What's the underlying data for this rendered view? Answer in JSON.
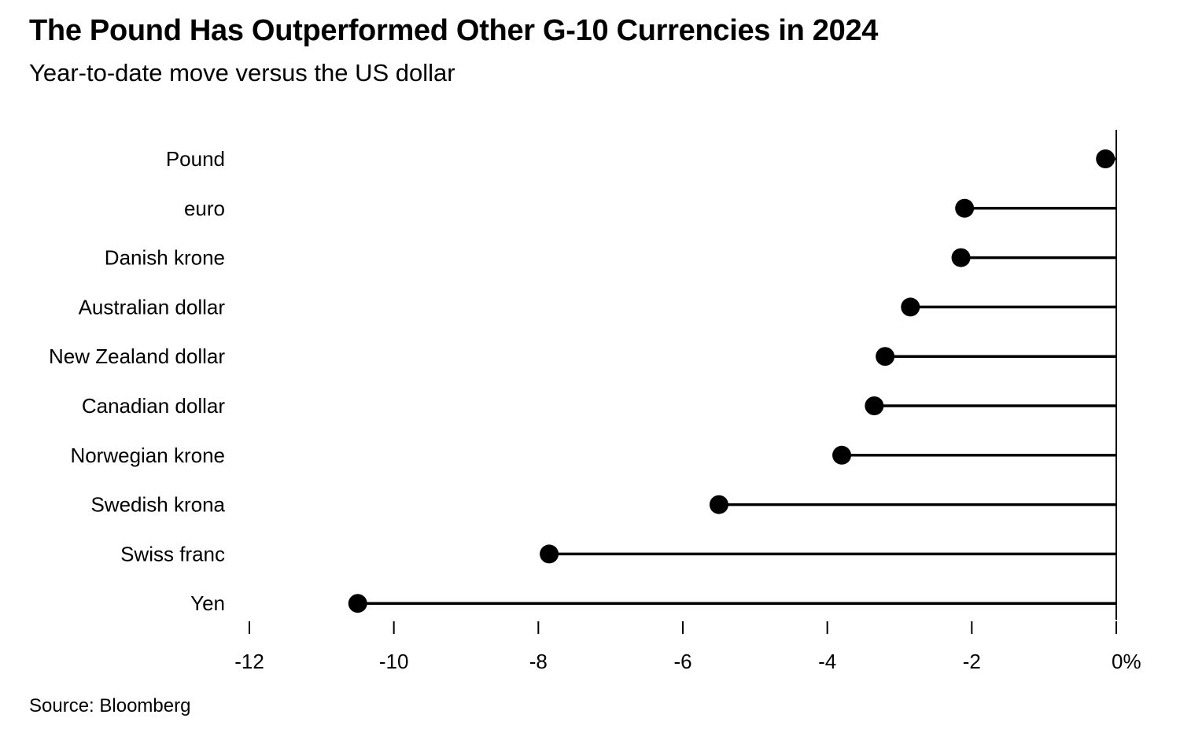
{
  "header": {
    "title": "The Pound Has Outperformed Other G-10 Currencies in 2024",
    "subtitle": "Year-to-date move versus the US dollar"
  },
  "footer": {
    "source": "Source: Bloomberg"
  },
  "chart_data": {
    "type": "lollipop",
    "title": "The Pound Has Outperformed Other G-10 Currencies in 2024",
    "subtitle": "Year-to-date move versus the US dollar",
    "categories": [
      "Pound",
      "euro",
      "Danish krone",
      "Australian dollar",
      "New Zealand dollar",
      "Canadian dollar",
      "Norwegian krone",
      "Swedish krona",
      "Swiss franc",
      "Yen"
    ],
    "values": [
      -0.15,
      -2.1,
      -2.15,
      -2.85,
      -3.2,
      -3.35,
      -3.8,
      -5.5,
      -7.85,
      -10.5
    ],
    "xlim": [
      -12,
      0
    ],
    "x_ticks": [
      -12,
      -10,
      -8,
      -6,
      -4,
      -2,
      0
    ],
    "x_tick_labels": [
      "-12",
      "-10",
      "-8",
      "-6",
      "-4",
      "-2",
      "0%"
    ],
    "xlabel": "",
    "ylabel": "",
    "grid": false,
    "legend": "none",
    "colors": {
      "marker": "#000000",
      "stem": "#000000",
      "axis": "#000000"
    }
  }
}
